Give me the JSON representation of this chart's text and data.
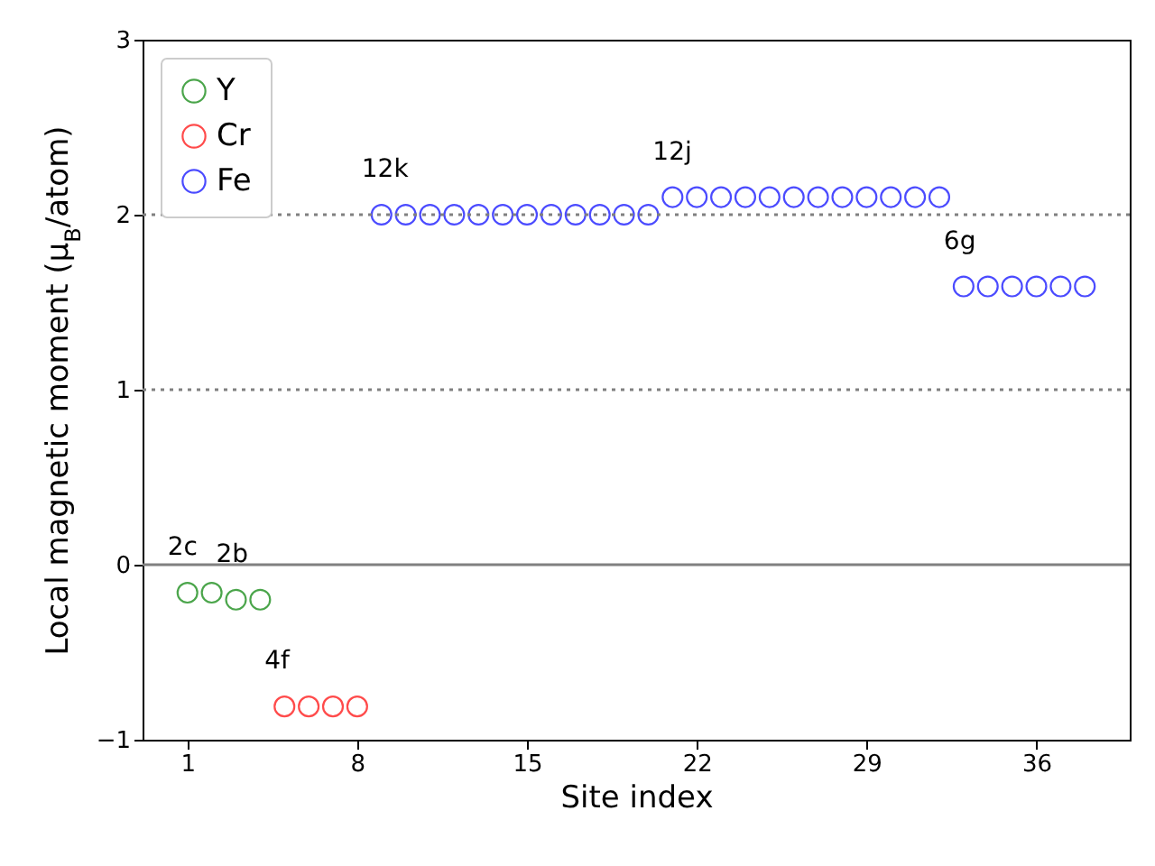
{
  "chart_data": {
    "type": "scatter",
    "xlabel": "Site index",
    "ylabel": "Local magnetic moment (μ$_{B}$/atom)",
    "xlim": [
      -0.85,
      39.85
    ],
    "ylim": [
      -1,
      3
    ],
    "xticks": [
      1,
      8,
      15,
      22,
      29,
      36
    ],
    "yticks": [
      -1,
      0,
      1,
      2,
      3
    ],
    "marker": "circle",
    "legend": "top left",
    "grid": false,
    "series": [
      {
        "name": "Y",
        "color": "#008000",
        "x": [
          1,
          2,
          3,
          4
        ],
        "values": [
          -0.16,
          -0.16,
          -0.2,
          -0.2
        ]
      },
      {
        "name": "Cr",
        "color": "#ff0000",
        "x": [
          5,
          6,
          7,
          8
        ],
        "values": [
          -0.81,
          -0.81,
          -0.81,
          -0.81
        ]
      },
      {
        "name": "Fe",
        "color": "#0000ff",
        "x": [
          9,
          10,
          11,
          12,
          13,
          14,
          15,
          16,
          17,
          18,
          19,
          20,
          21,
          22,
          23,
          24,
          25,
          26,
          27,
          28,
          29,
          30,
          31,
          32,
          33,
          34,
          35,
          36,
          37,
          38
        ],
        "values": [
          2.0,
          2.0,
          2.0,
          2.0,
          2.0,
          2.0,
          2.0,
          2.0,
          2.0,
          2.0,
          2.0,
          2.0,
          2.1,
          2.1,
          2.1,
          2.1,
          2.1,
          2.1,
          2.1,
          2.1,
          2.1,
          2.1,
          2.1,
          2.1,
          1.59,
          1.59,
          1.59,
          1.59,
          1.59,
          1.59
        ]
      }
    ],
    "ref_lines": [
      {
        "axis": "y",
        "value": 2,
        "color": "#808080",
        "line_style": "dotted"
      },
      {
        "axis": "y",
        "value": 1,
        "color": "#808080",
        "line_style": "dotted"
      },
      {
        "axis": "y",
        "value": 0,
        "color": "#808080",
        "line_style": "solid"
      }
    ],
    "annotations": [
      {
        "text": "2c",
        "x": 1,
        "y": -0.16
      },
      {
        "text": "2b",
        "x": 3,
        "y": -0.2
      },
      {
        "text": "4f",
        "x": 5,
        "y": -0.81
      },
      {
        "text": "12k",
        "x": 9,
        "y": 2.0
      },
      {
        "text": "12j",
        "x": 21,
        "y": 2.1
      },
      {
        "text": "6g",
        "x": 33,
        "y": 1.59
      }
    ]
  }
}
